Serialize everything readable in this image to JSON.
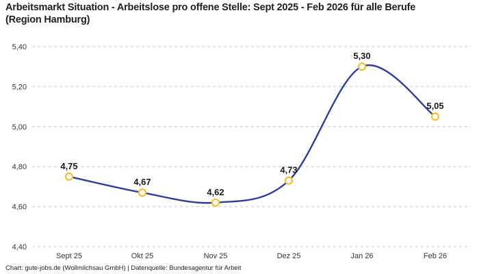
{
  "title": "Arbeitsmarkt Situation - Arbeitslose pro offene Stelle: Sept 2025 - Feb 2026 für alle Berufe (Region Hamburg)",
  "footer": "Chart: gute-jobs.de (Wollmilchsau GmbH) | Datenquelle: Bundesagentur für Arbeit",
  "chart_data": {
    "type": "line",
    "title": "Arbeitsmarkt Situation - Arbeitslose pro offene Stelle: Sept 2025 - Feb 2026 für alle Berufe (Region Hamburg)",
    "categories": [
      "Sept 25",
      "Okt 25",
      "Nov 25",
      "Dez 25",
      "Jan 26",
      "Feb 26"
    ],
    "values": [
      4.75,
      4.67,
      4.62,
      4.73,
      5.3,
      5.05
    ],
    "value_labels": [
      "4,75",
      "4,67",
      "4,62",
      "4,73",
      "5,30",
      "5,05"
    ],
    "y_ticks": [
      4.4,
      4.6,
      4.8,
      5.0,
      5.2,
      5.4
    ],
    "y_tick_labels": [
      "4,40",
      "4,60",
      "4,80",
      "5,00",
      "5,20",
      "5,40"
    ],
    "ylim": [
      4.4,
      5.4
    ],
    "xlabel": "",
    "ylabel": "",
    "grid": "horizontal-dashed",
    "legend_position": "none",
    "line_style": "smooth-spline",
    "colors": {
      "line": "#2b3f9e",
      "marker_stroke": "#f9bd2b",
      "marker_fill": "#ffffff",
      "grid": "#c8c8c8",
      "point_label": "#1a1a1a",
      "tick_label": "#333333",
      "title": "#212121"
    }
  }
}
